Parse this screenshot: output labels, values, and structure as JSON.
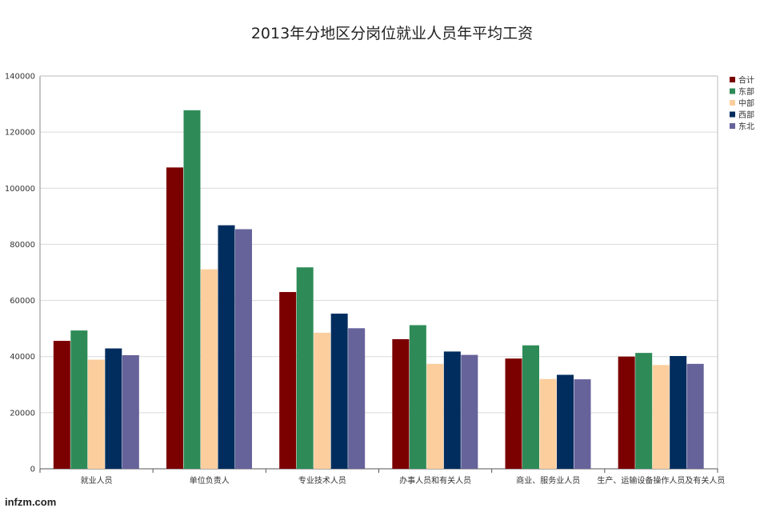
{
  "chart_data": {
    "type": "bar",
    "title": "2013年分地区分岗位就业人员年平均工资",
    "categories": [
      "就业人员",
      "单位负责人",
      "专业技术人员",
      "办事人员和有关人员",
      "商业、服务业人员",
      "生产、运输设备操作人员及有关人员"
    ],
    "series": [
      {
        "name": "合计",
        "color": "#7b0000",
        "values": [
          45600,
          107400,
          63000,
          46200,
          39300,
          40000
        ]
      },
      {
        "name": "东部",
        "color": "#2e8b57",
        "values": [
          49300,
          127800,
          71800,
          51200,
          44000,
          41300
        ]
      },
      {
        "name": "中部",
        "color": "#fcce9e",
        "values": [
          38900,
          71100,
          48500,
          37400,
          32000,
          37000
        ]
      },
      {
        "name": "西部",
        "color": "#002d5e",
        "values": [
          42900,
          86800,
          55300,
          41800,
          33500,
          40200
        ]
      },
      {
        "name": "东北",
        "color": "#66629a",
        "values": [
          40500,
          85400,
          50100,
          40600,
          31900,
          37400
        ]
      }
    ],
    "ylim": [
      0,
      140000
    ],
    "yticks": [
      0,
      20000,
      40000,
      60000,
      80000,
      100000,
      120000,
      140000
    ],
    "xlabel": "",
    "ylabel": "",
    "grid": true,
    "legend_position": "right"
  },
  "watermark": "infzm.com"
}
